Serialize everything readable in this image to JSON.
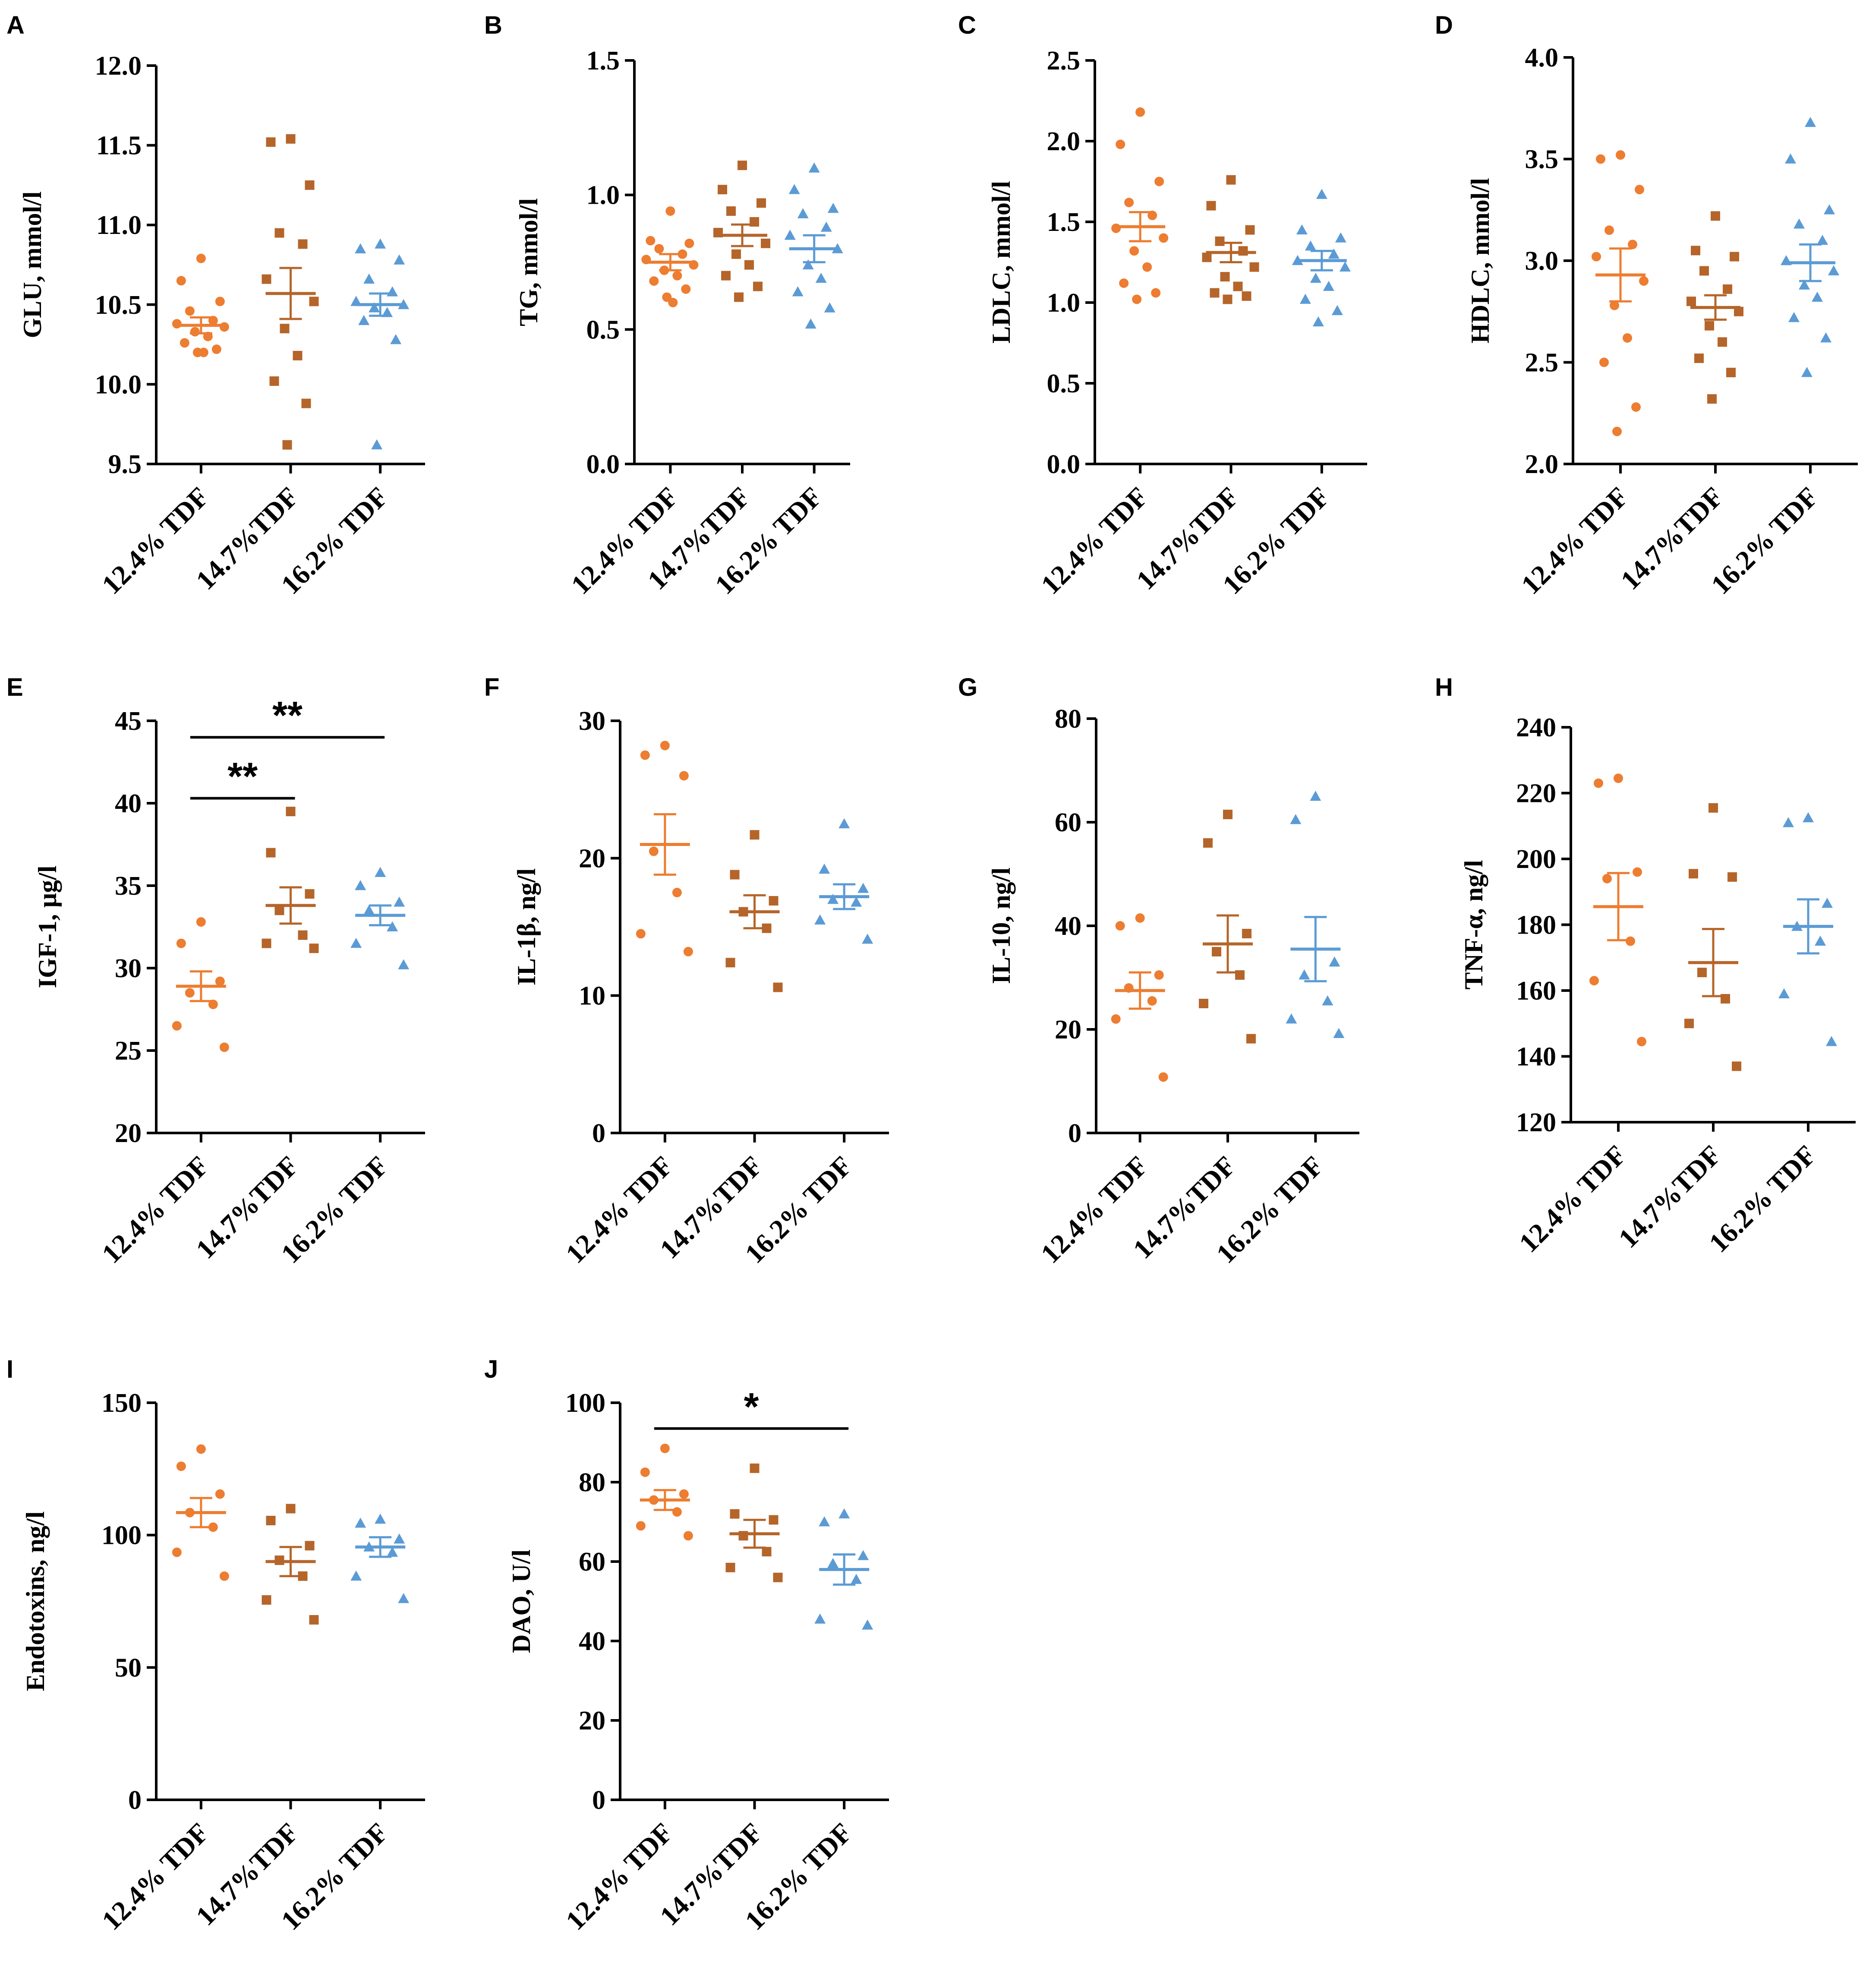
{
  "colors": {
    "g1": "#ED7D31",
    "g2": "#B5652A",
    "g3": "#5B9BD5",
    "axis": "#000000"
  },
  "groups": [
    "12.4% TDF",
    "14.7%TDF",
    "16.2% TDF"
  ],
  "chart_data": [
    {
      "panel": "A",
      "type": "scatter",
      "ylabel": "GLU, mmol/l",
      "ylim": [
        9.5,
        12.0
      ],
      "yticks": [
        "9.5",
        "10.0",
        "10.5",
        "11.0",
        "11.5",
        "12.0"
      ],
      "categories": [
        "12.4% TDF",
        "14.7%TDF",
        "16.2% TDF"
      ],
      "series": [
        {
          "name": "12.4% TDF",
          "marker": "circle",
          "mean": 10.37,
          "sem": 0.05,
          "values": [
            10.79,
            10.65,
            10.52,
            10.46,
            10.4,
            10.38,
            10.36,
            10.33,
            10.3,
            10.26,
            10.22,
            10.2,
            10.2
          ]
        },
        {
          "name": "14.7%TDF",
          "marker": "square",
          "mean": 10.57,
          "sem": 0.16,
          "values": [
            11.54,
            11.52,
            11.25,
            10.95,
            10.88,
            10.66,
            10.52,
            10.35,
            10.18,
            10.02,
            9.88,
            9.62
          ]
        },
        {
          "name": "16.2% TDF",
          "marker": "triangle",
          "mean": 10.5,
          "sem": 0.07,
          "values": [
            10.88,
            10.85,
            10.78,
            10.66,
            10.58,
            10.52,
            10.5,
            10.48,
            10.45,
            10.4,
            10.28,
            9.62
          ]
        }
      ],
      "significance": []
    },
    {
      "panel": "B",
      "type": "scatter",
      "ylabel": "TG, mmol/l",
      "ylim": [
        0.0,
        1.5
      ],
      "yticks": [
        "0.0",
        "0.5",
        "1.0",
        "1.5"
      ],
      "categories": [
        "12.4% TDF",
        "14.7%TDF",
        "16.2% TDF"
      ],
      "series": [
        {
          "name": "12.4% TDF",
          "marker": "circle",
          "mean": 0.75,
          "sem": 0.03,
          "values": [
            0.94,
            0.83,
            0.82,
            0.8,
            0.78,
            0.76,
            0.74,
            0.72,
            0.7,
            0.68,
            0.65,
            0.62,
            0.6
          ]
        },
        {
          "name": "14.7%TDF",
          "marker": "square",
          "mean": 0.85,
          "sem": 0.04,
          "values": [
            1.11,
            1.02,
            0.97,
            0.94,
            0.9,
            0.86,
            0.82,
            0.78,
            0.74,
            0.7,
            0.66,
            0.62
          ]
        },
        {
          "name": "16.2% TDF",
          "marker": "triangle",
          "mean": 0.8,
          "sem": 0.05,
          "values": [
            1.1,
            1.02,
            0.95,
            0.93,
            0.88,
            0.85,
            0.8,
            0.74,
            0.69,
            0.64,
            0.58,
            0.52
          ]
        }
      ],
      "significance": []
    },
    {
      "panel": "C",
      "type": "scatter",
      "ylabel": "LDLC, mmol/l",
      "ylim": [
        0.0,
        2.5
      ],
      "yticks": [
        "0.0",
        "0.5",
        "1.0",
        "1.5",
        "2.0",
        "2.5"
      ],
      "categories": [
        "12.4% TDF",
        "14.7%TDF",
        "16.2% TDF"
      ],
      "series": [
        {
          "name": "12.4% TDF",
          "marker": "circle",
          "mean": 1.47,
          "sem": 0.09,
          "values": [
            2.18,
            1.98,
            1.75,
            1.62,
            1.54,
            1.46,
            1.4,
            1.32,
            1.22,
            1.12,
            1.06,
            1.02
          ]
        },
        {
          "name": "14.7%TDF",
          "marker": "square",
          "mean": 1.31,
          "sem": 0.06,
          "values": [
            1.76,
            1.6,
            1.45,
            1.38,
            1.32,
            1.28,
            1.22,
            1.16,
            1.1,
            1.06,
            1.04,
            1.02
          ]
        },
        {
          "name": "16.2% TDF",
          "marker": "triangle",
          "mean": 1.26,
          "sem": 0.06,
          "values": [
            1.67,
            1.45,
            1.4,
            1.35,
            1.3,
            1.26,
            1.22,
            1.15,
            1.1,
            1.02,
            0.95,
            0.88
          ]
        }
      ],
      "significance": []
    },
    {
      "panel": "D",
      "type": "scatter",
      "ylabel": "HDLC, mmol/l",
      "ylim": [
        2.0,
        4.0
      ],
      "yticks": [
        "2.0",
        "2.5",
        "3.0",
        "3.5",
        "4.0"
      ],
      "categories": [
        "12.4% TDF",
        "14.7%TDF",
        "16.2% TDF"
      ],
      "series": [
        {
          "name": "12.4% TDF",
          "marker": "circle",
          "mean": 2.93,
          "sem": 0.13,
          "values": [
            3.52,
            3.5,
            3.35,
            3.15,
            3.08,
            3.02,
            2.9,
            2.78,
            2.62,
            2.5,
            2.28,
            2.16
          ]
        },
        {
          "name": "14.7%TDF",
          "marker": "square",
          "mean": 2.77,
          "sem": 0.06,
          "values": [
            3.22,
            3.05,
            3.02,
            2.95,
            2.86,
            2.8,
            2.75,
            2.68,
            2.6,
            2.52,
            2.45,
            2.32
          ]
        },
        {
          "name": "16.2% TDF",
          "marker": "triangle",
          "mean": 2.99,
          "sem": 0.09,
          "values": [
            3.68,
            3.5,
            3.25,
            3.18,
            3.1,
            3.0,
            2.95,
            2.88,
            2.82,
            2.72,
            2.62,
            2.45
          ]
        }
      ],
      "significance": []
    },
    {
      "panel": "E",
      "type": "scatter",
      "ylabel": "IGF-1, μg/l",
      "ylim": [
        20,
        45
      ],
      "yticks": [
        "20",
        "25",
        "30",
        "35",
        "40",
        "45"
      ],
      "categories": [
        "12.4% TDF",
        "14.7%TDF",
        "16.2% TDF"
      ],
      "series": [
        {
          "name": "12.4% TDF",
          "marker": "circle",
          "mean": 28.9,
          "sem": 0.9,
          "values": [
            32.8,
            31.5,
            29.2,
            28.5,
            27.8,
            26.5,
            25.2
          ]
        },
        {
          "name": "14.7%TDF",
          "marker": "square",
          "mean": 33.8,
          "sem": 1.1,
          "values": [
            39.5,
            37.0,
            34.5,
            33.5,
            32.0,
            31.5,
            31.2
          ]
        },
        {
          "name": "16.2% TDF",
          "marker": "triangle",
          "mean": 33.2,
          "sem": 0.6,
          "values": [
            35.8,
            35.0,
            34.0,
            33.5,
            32.5,
            31.5,
            30.2
          ]
        }
      ],
      "significance": [
        {
          "from": 0,
          "to": 1,
          "label": "**",
          "y": 40.3
        },
        {
          "from": 0,
          "to": 2,
          "label": "**",
          "y": 44.0
        }
      ]
    },
    {
      "panel": "F",
      "type": "scatter",
      "ylabel": "IL-1β, ng/l",
      "ylim": [
        0,
        30
      ],
      "yticks": [
        "0",
        "10",
        "20",
        "30"
      ],
      "categories": [
        "12.4% TDF",
        "14.7%TDF",
        "16.2% TDF"
      ],
      "series": [
        {
          "name": "12.4% TDF",
          "marker": "circle",
          "mean": 21.0,
          "sem": 2.2,
          "values": [
            28.2,
            27.5,
            26.0,
            20.5,
            17.5,
            14.5,
            13.2
          ]
        },
        {
          "name": "14.7%TDF",
          "marker": "square",
          "mean": 16.1,
          "sem": 1.2,
          "values": [
            21.7,
            18.8,
            16.9,
            16.1,
            14.9,
            12.4,
            10.6
          ]
        },
        {
          "name": "16.2% TDF",
          "marker": "triangle",
          "mean": 17.2,
          "sem": 0.9,
          "values": [
            22.5,
            19.2,
            17.8,
            17.0,
            16.8,
            15.5,
            14.1
          ]
        }
      ],
      "significance": []
    },
    {
      "panel": "G",
      "type": "scatter",
      "ylabel": "IL-10, ng/l",
      "ylim": [
        0,
        80
      ],
      "yticks": [
        "0",
        "20",
        "40",
        "60",
        "80"
      ],
      "categories": [
        "12.4% TDF",
        "14.7%TDF",
        "16.2% TDF"
      ],
      "series": [
        {
          "name": "12.4% TDF",
          "marker": "circle",
          "mean": 27.5,
          "sem": 3.5,
          "values": [
            41.5,
            40.0,
            30.5,
            28.0,
            25.5,
            22.0,
            10.8
          ]
        },
        {
          "name": "14.7%TDF",
          "marker": "square",
          "mean": 36.5,
          "sem": 5.5,
          "values": [
            61.5,
            56.0,
            38.5,
            35.0,
            30.5,
            25.0,
            18.2
          ]
        },
        {
          "name": "16.2% TDF",
          "marker": "triangle",
          "mean": 35.5,
          "sem": 6.2,
          "values": [
            65.0,
            60.5,
            33.0,
            30.5,
            25.5,
            22.0,
            19.2
          ]
        }
      ],
      "significance": []
    },
    {
      "panel": "H",
      "type": "scatter",
      "ylabel": "TNF-α, ng/l",
      "ylim": [
        120,
        240
      ],
      "yticks": [
        "120",
        "140",
        "160",
        "180",
        "200",
        "220",
        "240"
      ],
      "categories": [
        "12.4% TDF",
        "14.7%TDF",
        "16.2% TDF"
      ],
      "series": [
        {
          "name": "12.4% TDF",
          "marker": "circle",
          "mean": 185.5,
          "sem": 10.2,
          "values": [
            224.5,
            223.0,
            196.0,
            194.0,
            175.0,
            163.0,
            144.5
          ]
        },
        {
          "name": "14.7%TDF",
          "marker": "square",
          "mean": 168.5,
          "sem": 10.2,
          "values": [
            215.5,
            195.5,
            194.5,
            165.5,
            157.5,
            150.0,
            137.0
          ]
        },
        {
          "name": "16.2% TDF",
          "marker": "triangle",
          "mean": 179.5,
          "sem": 8.2,
          "values": [
            212.5,
            211.0,
            186.5,
            179.5,
            175.0,
            159.0,
            144.5
          ]
        }
      ],
      "significance": []
    },
    {
      "panel": "I",
      "type": "scatter",
      "ylabel": "Endotoxins, ng/l",
      "ylim": [
        0,
        150
      ],
      "yticks": [
        "0",
        "50",
        "100",
        "150"
      ],
      "categories": [
        "12.4% TDF",
        "14.7%TDF",
        "16.2% TDF"
      ],
      "series": [
        {
          "name": "12.4% TDF",
          "marker": "circle",
          "mean": 108.5,
          "sem": 5.5,
          "values": [
            132.5,
            126.0,
            115.5,
            108.5,
            103.0,
            93.5,
            84.5
          ]
        },
        {
          "name": "14.7%TDF",
          "marker": "square",
          "mean": 90.0,
          "sem": 5.5,
          "values": [
            110.0,
            105.5,
            96.0,
            90.5,
            84.5,
            75.5,
            68.0
          ]
        },
        {
          "name": "16.2% TDF",
          "marker": "triangle",
          "mean": 95.5,
          "sem": 3.7,
          "values": [
            106.0,
            104.5,
            98.5,
            95.5,
            93.5,
            84.5,
            76.0
          ]
        }
      ],
      "significance": []
    },
    {
      "panel": "J",
      "type": "scatter",
      "ylabel": "DAO, U/l",
      "ylim": [
        0,
        100
      ],
      "yticks": [
        "0",
        "20",
        "40",
        "60",
        "80",
        "100"
      ],
      "categories": [
        "12.4% TDF",
        "14.7%TDF",
        "16.2% TDF"
      ],
      "series": [
        {
          "name": "12.4% TDF",
          "marker": "circle",
          "mean": 75.5,
          "sem": 2.5,
          "values": [
            88.5,
            82.5,
            77.0,
            75.5,
            72.5,
            69.0,
            66.5
          ]
        },
        {
          "name": "14.7%TDF",
          "marker": "square",
          "mean": 67.0,
          "sem": 3.5,
          "values": [
            83.5,
            72.0,
            70.5,
            66.5,
            62.5,
            58.5,
            56.0
          ]
        },
        {
          "name": "16.2% TDF",
          "marker": "triangle",
          "mean": 58.0,
          "sem": 3.8,
          "values": [
            72.0,
            70.0,
            61.5,
            59.5,
            55.5,
            45.5,
            44.0
          ]
        }
      ],
      "significance": [
        {
          "from": 0,
          "to": 2,
          "label": "*",
          "y": 93.5
        }
      ]
    }
  ]
}
